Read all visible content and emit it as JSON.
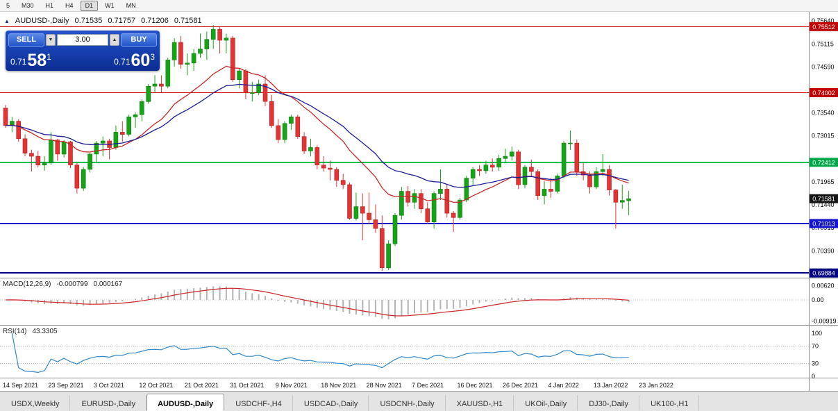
{
  "toolbar": {
    "timeframes": [
      "5",
      "M30",
      "H1",
      "H4",
      "D1",
      "W1",
      "MN"
    ],
    "active": "D1"
  },
  "chart_header": {
    "icon": "▲",
    "symbol": "AUDUSD-,Daily",
    "open": "0.71535",
    "high": "0.71757",
    "low": "0.71206",
    "close": "0.71581"
  },
  "trade_panel": {
    "sell_label": "SELL",
    "buy_label": "BUY",
    "volume": "3.00",
    "volume_down_icon": "▼",
    "volume_up_icon": "▲",
    "sell_price": {
      "base": "0.71",
      "pips": "58",
      "pipette": "1"
    },
    "buy_price": {
      "base": "0.71",
      "pips": "60",
      "pipette": "3"
    }
  },
  "price_axis": {
    "labels": [
      {
        "text": "0.75640",
        "price": 0.7564
      },
      {
        "text": "0.75115",
        "price": 0.75115
      },
      {
        "text": "0.74590",
        "price": 0.7459
      },
      {
        "text": "0.73540",
        "price": 0.7354
      },
      {
        "text": "0.73015",
        "price": 0.73015
      },
      {
        "text": "0.71965",
        "price": 0.71965
      },
      {
        "text": "0.71440",
        "price": 0.7144
      },
      {
        "text": "0.70915",
        "price": 0.70915
      },
      {
        "text": "0.70390",
        "price": 0.7039
      }
    ],
    "badges": [
      {
        "text": "0.75512",
        "price": 0.75512,
        "bg": "#c00000"
      },
      {
        "text": "0.74002",
        "price": 0.74002,
        "bg": "#c00000"
      },
      {
        "text": "0.72412",
        "price": 0.72412,
        "bg": "#00a84a"
      },
      {
        "text": "0.71581",
        "price": 0.71581,
        "bg": "#151515"
      },
      {
        "text": "0.71013",
        "price": 0.71013,
        "bg": "#1414cc"
      },
      {
        "text": "0.69884",
        "price": 0.69884,
        "bg": "#000080"
      }
    ]
  },
  "indicators": {
    "macd": {
      "label": "MACD(12,26,9)",
      "value_histogram": "-0.000799",
      "value_signal": "0.000167",
      "histogram_color": "#b4b4b4",
      "signal_color": "#cc2222",
      "axis": [
        {
          "text": "0.00620",
          "value": 0.0062
        },
        {
          "text": "0.00",
          "value": 0
        },
        {
          "text": "-0.00919",
          "value": -0.00919
        }
      ]
    },
    "rsi": {
      "label": "RSI(14)",
      "value": "43.3305",
      "line_color": "#2f86c8",
      "axis": [
        {
          "text": "100",
          "value": 100
        },
        {
          "text": "70",
          "value": 70
        },
        {
          "text": "30",
          "value": 30
        },
        {
          "text": "0",
          "value": 0
        }
      ],
      "levels": [
        70,
        30
      ]
    }
  },
  "date_axis": [
    "14 Sep 2021",
    "23 Sep 2021",
    "3 Oct 2021",
    "12 Oct 2021",
    "21 Oct 2021",
    "31 Oct 2021",
    "9 Nov 2021",
    "18 Nov 2021",
    "28 Nov 2021",
    "7 Dec 2021",
    "16 Dec 2021",
    "26 Dec 2021",
    "4 Jan 2022",
    "13 Jan 2022",
    "23 Jan 2022"
  ],
  "tabs": {
    "items": [
      "USDX,Weekly",
      "EURUSD-,Daily",
      "AUDUSD-,Daily",
      "USDCHF-,H4",
      "USDCAD-,Daily",
      "USDCNH-,Daily",
      "XAUUSD-,H1",
      "UKOil-,Daily",
      "DJ30-,Daily",
      "UK100-,H1"
    ],
    "active": "AUDUSD-,Daily"
  },
  "chart_data": {
    "type": "candlestick",
    "symbol": "AUDUSD",
    "timeframe": "Daily",
    "up_color": "#17a317",
    "up_stroke": "#0d800d",
    "down_color": "#e23434",
    "down_stroke": "#b42020",
    "horizontal_lines": [
      {
        "price": 0.75512,
        "color": "#d40000",
        "width": 1
      },
      {
        "price": 0.74002,
        "color": "#d40000",
        "width": 1
      },
      {
        "price": 0.72412,
        "color": "#00c24a",
        "width": 2
      },
      {
        "price": 0.71013,
        "color": "#1414d4",
        "width": 2
      },
      {
        "price": 0.69884,
        "color": "#000080",
        "width": 2
      }
    ],
    "moving_averages": [
      {
        "name": "ma-fast",
        "period": 16,
        "color": "#c62828"
      },
      {
        "name": "ma-slow",
        "period": 28,
        "color": "#1c1c96"
      }
    ],
    "candles_ohlc": [
      [
        0.7365,
        0.7372,
        0.732,
        0.7325
      ],
      [
        0.7325,
        0.7345,
        0.731,
        0.7335
      ],
      [
        0.7335,
        0.734,
        0.7288,
        0.7295
      ],
      [
        0.7295,
        0.7305,
        0.7255,
        0.7262
      ],
      [
        0.7262,
        0.727,
        0.722,
        0.7255
      ],
      [
        0.7255,
        0.7267,
        0.723,
        0.7235
      ],
      [
        0.7235,
        0.7255,
        0.7222,
        0.724
      ],
      [
        0.724,
        0.731,
        0.7235,
        0.7292
      ],
      [
        0.7292,
        0.7295,
        0.7245,
        0.726
      ],
      [
        0.726,
        0.7292,
        0.7252,
        0.7288
      ],
      [
        0.7288,
        0.729,
        0.7228,
        0.7235
      ],
      [
        0.7235,
        0.724,
        0.717,
        0.7182
      ],
      [
        0.7182,
        0.723,
        0.7176,
        0.7225
      ],
      [
        0.7225,
        0.7263,
        0.7218,
        0.726
      ],
      [
        0.726,
        0.729,
        0.724,
        0.7285
      ],
      [
        0.7285,
        0.73,
        0.7255,
        0.729
      ],
      [
        0.729,
        0.7295,
        0.7248,
        0.7275
      ],
      [
        0.7275,
        0.7325,
        0.727,
        0.731
      ],
      [
        0.731,
        0.7335,
        0.7288,
        0.7305
      ],
      [
        0.7305,
        0.735,
        0.73,
        0.7345
      ],
      [
        0.7345,
        0.7355,
        0.732,
        0.735
      ],
      [
        0.735,
        0.7385,
        0.7335,
        0.738
      ],
      [
        0.738,
        0.742,
        0.7375,
        0.7415
      ],
      [
        0.7415,
        0.744,
        0.74,
        0.742
      ],
      [
        0.742,
        0.744,
        0.74,
        0.7415
      ],
      [
        0.7415,
        0.748,
        0.741,
        0.7475
      ],
      [
        0.7475,
        0.7525,
        0.746,
        0.7515
      ],
      [
        0.7515,
        0.753,
        0.7455,
        0.7465
      ],
      [
        0.7465,
        0.749,
        0.744,
        0.7468
      ],
      [
        0.7468,
        0.75,
        0.745,
        0.749
      ],
      [
        0.749,
        0.7535,
        0.748,
        0.75
      ],
      [
        0.75,
        0.754,
        0.7475,
        0.7522
      ],
      [
        0.7522,
        0.7555,
        0.75,
        0.7545
      ],
      [
        0.7545,
        0.755,
        0.749,
        0.752
      ],
      [
        0.752,
        0.7535,
        0.749,
        0.7525
      ],
      [
        0.7525,
        0.753,
        0.7425,
        0.743
      ],
      [
        0.743,
        0.7455,
        0.741,
        0.745
      ],
      [
        0.745,
        0.7455,
        0.7385,
        0.74
      ],
      [
        0.74,
        0.7425,
        0.738,
        0.74
      ],
      [
        0.74,
        0.743,
        0.7395,
        0.742
      ],
      [
        0.742,
        0.744,
        0.737,
        0.738
      ],
      [
        0.738,
        0.7395,
        0.732,
        0.7325
      ],
      [
        0.7325,
        0.734,
        0.7285,
        0.7293
      ],
      [
        0.7293,
        0.7335,
        0.7285,
        0.733
      ],
      [
        0.733,
        0.735,
        0.7315,
        0.7345
      ],
      [
        0.7345,
        0.735,
        0.7295,
        0.73
      ],
      [
        0.73,
        0.731,
        0.726,
        0.7267
      ],
      [
        0.7267,
        0.7295,
        0.7255,
        0.7275
      ],
      [
        0.7275,
        0.728,
        0.7225,
        0.7235
      ],
      [
        0.7235,
        0.7255,
        0.722,
        0.7228
      ],
      [
        0.7228,
        0.7245,
        0.72,
        0.7225
      ],
      [
        0.7225,
        0.723,
        0.7185,
        0.72
      ],
      [
        0.72,
        0.7215,
        0.718,
        0.719
      ],
      [
        0.719,
        0.7195,
        0.711,
        0.7113
      ],
      [
        0.7113,
        0.7172,
        0.7108,
        0.714
      ],
      [
        0.714,
        0.717,
        0.7063,
        0.7125
      ],
      [
        0.7125,
        0.7172,
        0.71,
        0.711
      ],
      [
        0.711,
        0.7145,
        0.708,
        0.709
      ],
      [
        0.709,
        0.712,
        0.6993,
        0.7
      ],
      [
        0.7,
        0.7063,
        0.6995,
        0.7055
      ],
      [
        0.7055,
        0.7125,
        0.705,
        0.712
      ],
      [
        0.712,
        0.7185,
        0.711,
        0.7175
      ],
      [
        0.7175,
        0.7187,
        0.714,
        0.715
      ],
      [
        0.715,
        0.718,
        0.7135,
        0.717
      ],
      [
        0.717,
        0.718,
        0.7125,
        0.7135
      ],
      [
        0.7135,
        0.715,
        0.71,
        0.7105
      ],
      [
        0.7105,
        0.7175,
        0.709,
        0.717
      ],
      [
        0.717,
        0.7225,
        0.7155,
        0.718
      ],
      [
        0.718,
        0.719,
        0.7115,
        0.7125
      ],
      [
        0.7125,
        0.713,
        0.7082,
        0.7115
      ],
      [
        0.7115,
        0.716,
        0.711,
        0.7155
      ],
      [
        0.7155,
        0.721,
        0.715,
        0.7205
      ],
      [
        0.7205,
        0.723,
        0.719,
        0.7225
      ],
      [
        0.7225,
        0.7235,
        0.721,
        0.7222
      ],
      [
        0.7222,
        0.7245,
        0.7215,
        0.7235
      ],
      [
        0.7235,
        0.725,
        0.722,
        0.723
      ],
      [
        0.723,
        0.7258,
        0.7222,
        0.725
      ],
      [
        0.725,
        0.7272,
        0.724,
        0.7255
      ],
      [
        0.7255,
        0.7277,
        0.7245,
        0.7265
      ],
      [
        0.7265,
        0.727,
        0.718,
        0.719
      ],
      [
        0.719,
        0.7235,
        0.7182,
        0.723
      ],
      [
        0.723,
        0.7247,
        0.721,
        0.722
      ],
      [
        0.722,
        0.7225,
        0.7155,
        0.7165
      ],
      [
        0.7165,
        0.7198,
        0.7145,
        0.718
      ],
      [
        0.718,
        0.7205,
        0.716,
        0.7175
      ],
      [
        0.7175,
        0.7215,
        0.717,
        0.721
      ],
      [
        0.721,
        0.729,
        0.7205,
        0.7285
      ],
      [
        0.7285,
        0.7314,
        0.727,
        0.7285
      ],
      [
        0.7285,
        0.7293,
        0.721,
        0.722
      ],
      [
        0.722,
        0.724,
        0.72,
        0.7212
      ],
      [
        0.7212,
        0.722,
        0.717,
        0.7185
      ],
      [
        0.7185,
        0.723,
        0.718,
        0.722
      ],
      [
        0.722,
        0.726,
        0.721,
        0.7225
      ],
      [
        0.7225,
        0.7235,
        0.7165,
        0.7178
      ],
      [
        0.7178,
        0.718,
        0.709,
        0.715
      ],
      [
        0.715,
        0.719,
        0.7135,
        0.7154
      ],
      [
        0.71535,
        0.71757,
        0.71206,
        0.71581
      ]
    ]
  }
}
